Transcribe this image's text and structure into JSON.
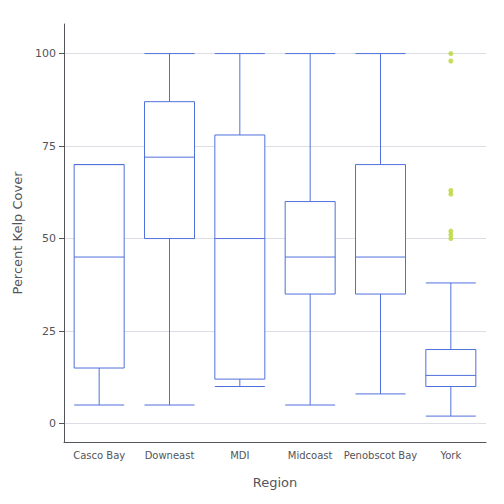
{
  "chart_data": {
    "type": "box",
    "xlabel": "Region",
    "ylabel": "Percent Kelp Cover",
    "categories": [
      "Casco Bay",
      "Downeast",
      "MDI",
      "Midcoast",
      "Penobscot Bay",
      "York"
    ],
    "whislo": [
      5,
      5,
      10,
      5,
      8,
      2
    ],
    "q1": [
      15,
      50,
      12,
      35,
      35,
      10
    ],
    "med": [
      45,
      72,
      50,
      45,
      45,
      13
    ],
    "q3": [
      70,
      87,
      78,
      60,
      70,
      20
    ],
    "whishi": [
      70,
      100,
      100,
      100,
      100,
      38
    ],
    "fliers": [
      [],
      [],
      [],
      [],
      [],
      [
        50,
        51,
        52,
        62,
        63,
        98,
        100
      ]
    ],
    "ylim": [
      -5,
      108
    ],
    "yticks": [
      0,
      25,
      50,
      75,
      100
    ],
    "grid": true
  }
}
